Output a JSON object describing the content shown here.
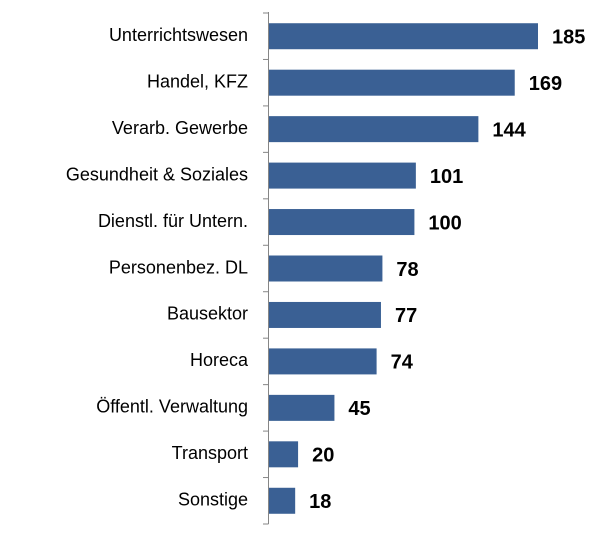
{
  "chart_data": {
    "type": "bar",
    "orientation": "horizontal",
    "color": "#3a6094",
    "categories": [
      "Unterrichtswesen",
      "Handel, KFZ",
      "Verarb. Gewerbe",
      "Gesundheit & Soziales",
      "Dienstl. für Untern.",
      "Personenbez. DL",
      "Bausektor",
      "Horeca",
      "Öffentl. Verwaltung",
      "Transport",
      "Sonstige"
    ],
    "values": [
      185,
      169,
      144,
      101,
      100,
      78,
      77,
      74,
      45,
      20,
      18
    ]
  }
}
